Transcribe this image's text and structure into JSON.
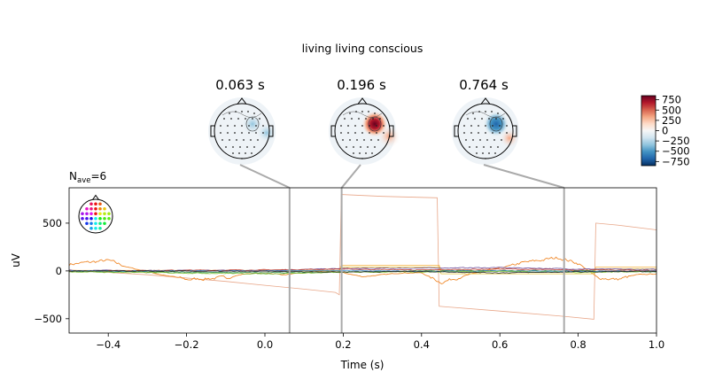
{
  "figure": {
    "suptitle": "living living conscious",
    "nave_label": "N",
    "nave_sub": "ave",
    "nave_value": "=6"
  },
  "topomaps": [
    {
      "time": 0.063,
      "label": "0.063 s"
    },
    {
      "time": 0.196,
      "label": "0.196 s"
    },
    {
      "time": 0.764,
      "label": "0.764 s"
    }
  ],
  "colorbar": {
    "ticks": [
      750,
      500,
      250,
      0,
      -250,
      -500,
      -750
    ],
    "tick_labels": [
      "750",
      "500",
      "250",
      "0",
      "−250",
      "−500",
      "−750"
    ],
    "range": [
      -850,
      850
    ],
    "colors": [
      "#053061",
      "#2166ac",
      "#4393c3",
      "#92c5de",
      "#d1e5f0",
      "#f7f7f7",
      "#fddbc7",
      "#f4a582",
      "#d6604d",
      "#b2182b",
      "#67001f"
    ]
  },
  "chart_data": {
    "type": "line",
    "xlabel": "Time (s)",
    "ylabel": "uV",
    "xlim": [
      -0.5,
      1.0
    ],
    "ylim": [
      -650,
      870
    ],
    "xticks": [
      -0.4,
      -0.2,
      0.0,
      0.2,
      0.4,
      0.6,
      0.8,
      1.0
    ],
    "xtick_labels": [
      "−0.4",
      "−0.2",
      "0.0",
      "0.2",
      "0.4",
      "0.6",
      "0.8",
      "1.0"
    ],
    "yticks": [
      500,
      0,
      -500
    ],
    "ytick_labels": [
      "500",
      "0",
      "−500"
    ],
    "marker_times": [
      0.063,
      0.196,
      0.764
    ],
    "series": [
      {
        "color": "#e8a688",
        "width": 0.8,
        "points": [
          [
            -0.5,
            10
          ],
          [
            -0.3,
            -40
          ],
          [
            -0.1,
            -110
          ],
          [
            0.0,
            -150
          ],
          [
            0.1,
            -190
          ],
          [
            0.18,
            -225
          ],
          [
            0.19,
            -250
          ],
          [
            0.195,
            800
          ],
          [
            0.3,
            780
          ],
          [
            0.44,
            765
          ],
          [
            0.445,
            -370
          ],
          [
            0.6,
            -420
          ],
          [
            0.75,
            -470
          ],
          [
            0.84,
            -505
          ],
          [
            0.845,
            500
          ],
          [
            0.9,
            480
          ],
          [
            1.0,
            430
          ]
        ]
      },
      {
        "color": "#f08a2c",
        "width": 0.9,
        "noise": true,
        "points": [
          [
            -0.5,
            70
          ],
          [
            -0.45,
            90
          ],
          [
            -0.4,
            110
          ],
          [
            -0.35,
            40
          ],
          [
            -0.3,
            -10
          ],
          [
            -0.25,
            -50
          ],
          [
            -0.2,
            -90
          ],
          [
            -0.15,
            -80
          ],
          [
            -0.1,
            -70
          ],
          [
            -0.05,
            -30
          ],
          [
            0.0,
            -20
          ],
          [
            0.05,
            -40
          ],
          [
            0.1,
            -20
          ],
          [
            0.15,
            0
          ],
          [
            0.2,
            -20
          ],
          [
            0.25,
            -60
          ],
          [
            0.3,
            -40
          ],
          [
            0.35,
            -20
          ],
          [
            0.4,
            -20
          ],
          [
            0.45,
            -120
          ],
          [
            0.5,
            -60
          ],
          [
            0.55,
            -10
          ],
          [
            0.6,
            30
          ],
          [
            0.65,
            80
          ],
          [
            0.7,
            110
          ],
          [
            0.75,
            140
          ],
          [
            0.8,
            80
          ],
          [
            0.85,
            -70
          ],
          [
            0.9,
            -90
          ],
          [
            0.95,
            -40
          ],
          [
            1.0,
            -30
          ]
        ]
      },
      {
        "color": "#f5b13c",
        "width": 0.8,
        "points": [
          [
            -0.5,
            5
          ],
          [
            0.19,
            5
          ],
          [
            0.195,
            60
          ],
          [
            0.445,
            60
          ],
          [
            0.45,
            0
          ],
          [
            0.84,
            0
          ],
          [
            0.845,
            40
          ],
          [
            1.0,
            40
          ]
        ]
      },
      {
        "color": "#e3c13a",
        "width": 0.8,
        "points": [
          [
            -0.5,
            0
          ],
          [
            0.19,
            0
          ],
          [
            0.195,
            40
          ],
          [
            0.445,
            40
          ],
          [
            0.45,
            -30
          ],
          [
            0.84,
            -30
          ],
          [
            0.845,
            20
          ],
          [
            1.0,
            20
          ]
        ]
      },
      {
        "color": "#6a4a9a",
        "width": 0.8,
        "noise": true,
        "points": [
          [
            -0.5,
            5
          ],
          [
            0.0,
            5
          ],
          [
            0.2,
            25
          ],
          [
            0.4,
            30
          ],
          [
            0.6,
            35
          ],
          [
            0.8,
            20
          ],
          [
            1.0,
            15
          ]
        ]
      },
      {
        "color": "#c0392b",
        "width": 0.8,
        "noise": true,
        "points": [
          [
            -0.5,
            0
          ],
          [
            0.0,
            10
          ],
          [
            0.2,
            20
          ],
          [
            0.4,
            10
          ],
          [
            0.6,
            20
          ],
          [
            0.8,
            10
          ],
          [
            1.0,
            5
          ]
        ]
      },
      {
        "color": "#2c8a4a",
        "width": 0.8,
        "noise": true,
        "points": [
          [
            -0.5,
            -5
          ],
          [
            0.0,
            -20
          ],
          [
            0.2,
            -10
          ],
          [
            0.4,
            0
          ],
          [
            0.6,
            5
          ],
          [
            0.8,
            0
          ],
          [
            1.0,
            -10
          ]
        ]
      },
      {
        "color": "#3a8fd0",
        "width": 0.8,
        "noise": true,
        "points": [
          [
            -0.5,
            0
          ],
          [
            0.0,
            0
          ],
          [
            0.2,
            5
          ],
          [
            0.4,
            -5
          ],
          [
            0.6,
            0
          ],
          [
            0.8,
            -5
          ],
          [
            1.0,
            0
          ]
        ]
      },
      {
        "color": "#7fbf3a",
        "width": 0.8,
        "noise": true,
        "points": [
          [
            -0.5,
            -10
          ],
          [
            0.0,
            -30
          ],
          [
            0.2,
            -15
          ],
          [
            0.4,
            -10
          ],
          [
            0.6,
            -5
          ],
          [
            0.8,
            -15
          ],
          [
            1.0,
            -5
          ]
        ]
      },
      {
        "color": "#222222",
        "width": 0.8,
        "noise": true,
        "points": [
          [
            -0.5,
            0
          ],
          [
            0.0,
            -5
          ],
          [
            0.2,
            -10
          ],
          [
            0.4,
            -5
          ],
          [
            0.6,
            -20
          ],
          [
            0.8,
            -10
          ],
          [
            1.0,
            -5
          ]
        ]
      }
    ]
  }
}
